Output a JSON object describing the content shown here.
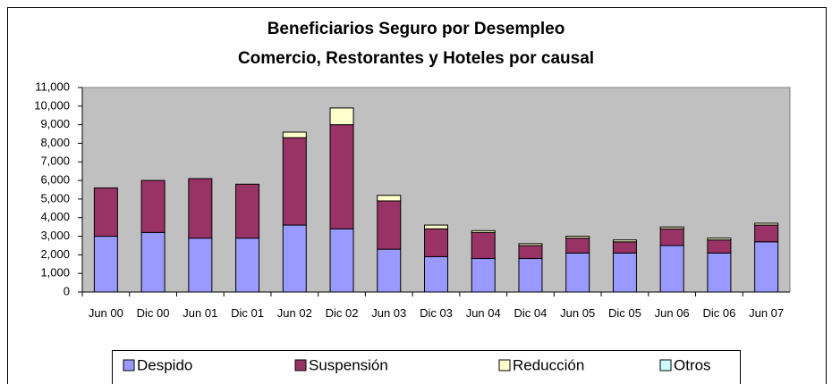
{
  "chart_data": {
    "type": "stacked_bar",
    "title": [
      "Beneficiarios Seguro por Desempleo",
      "Comercio, Restorantes y Hoteles por causal"
    ],
    "categories": [
      "Jun 00",
      "Dic 00",
      "Jun 01",
      "Dic 01",
      "Jun 02",
      "Dic 02",
      "Jun 03",
      "Dic 03",
      "Jun 04",
      "Dic 04",
      "Jun 05",
      "Dic 05",
      "Jun 06",
      "Dic 06",
      "Jun 07"
    ],
    "series": [
      {
        "name": "Despido",
        "color": "#9999ff",
        "values": [
          3000,
          3200,
          2900,
          2900,
          3600,
          3400,
          2300,
          1900,
          1800,
          1800,
          2100,
          2100,
          2500,
          2100,
          2700
        ]
      },
      {
        "name": "Suspensión",
        "color": "#993366",
        "values": [
          2600,
          2800,
          3200,
          2900,
          4700,
          5600,
          2600,
          1500,
          1400,
          700,
          800,
          600,
          900,
          700,
          900
        ]
      },
      {
        "name": "Reducción",
        "color": "#ffffcc",
        "values": [
          0,
          0,
          0,
          0,
          300,
          900,
          300,
          200,
          100,
          100,
          100,
          100,
          100,
          100,
          100
        ]
      },
      {
        "name": "Otros",
        "color": "#ccffff",
        "values": [
          0,
          0,
          0,
          0,
          0,
          0,
          0,
          0,
          0,
          0,
          0,
          0,
          0,
          0,
          0
        ]
      }
    ],
    "ylim": [
      0,
      11000
    ],
    "yticks": [
      0,
      {
        "value": 1000,
        "label": "1,000"
      },
      {
        "value": 2000,
        "label": "2,000"
      },
      {
        "value": 3000,
        "label": "3,000"
      },
      {
        "value": 4000,
        "label": "4,000"
      },
      {
        "value": 5000,
        "label": "5,000"
      },
      {
        "value": 6000,
        "label": "6,000"
      },
      {
        "value": 7000,
        "label": "7,000"
      },
      {
        "value": 8000,
        "label": "8,000"
      },
      {
        "value": 9000,
        "label": "9,000"
      },
      {
        "value": 10000,
        "label": "10,000"
      },
      {
        "value": 11000,
        "label": "11,000"
      }
    ],
    "plot_background": "#c0c0c0",
    "legend": "bottom"
  }
}
